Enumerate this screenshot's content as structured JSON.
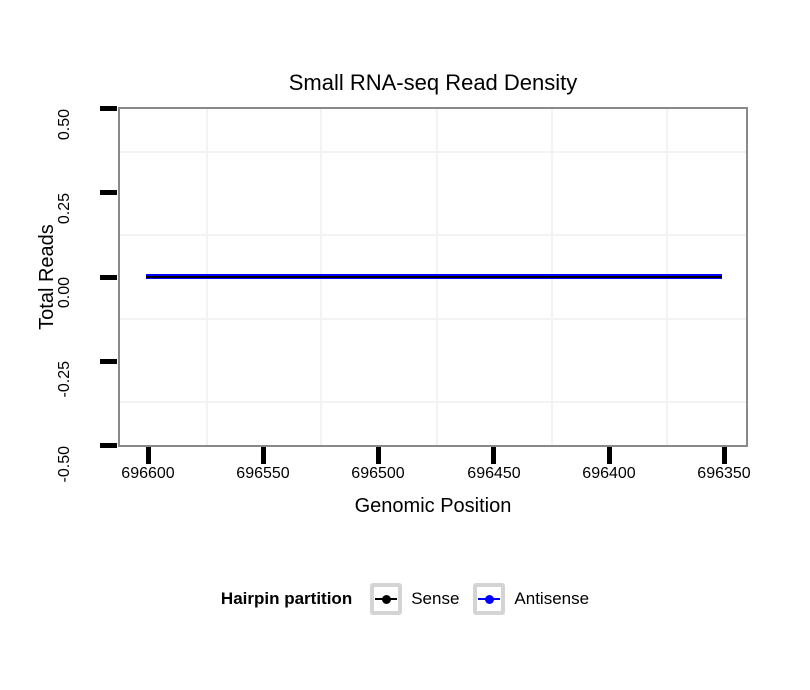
{
  "figure": {
    "title": "Small RNA-seq Read Density",
    "x_axis_title": "Genomic Position",
    "y_axis_title": "Total Reads"
  },
  "axes": {
    "x_tick_labels": [
      "696600",
      "696550",
      "696500",
      "696450",
      "696400",
      "696350"
    ],
    "y_tick_labels": [
      "0.50",
      "0.25",
      "0.00",
      "-0.25",
      "-0.50"
    ]
  },
  "legend": {
    "title": "Hairpin partition",
    "items": [
      {
        "label": "Sense",
        "color": "#000000"
      },
      {
        "label": "Antisense",
        "color": "#0000FF"
      }
    ]
  },
  "colors": {
    "panel_border": "#898989",
    "minor_gridline": "#F3F3F3",
    "tick_marks": "#000000",
    "legend_key_border": "#D4D4D4",
    "background": "#FFFFFF"
  },
  "chart_data": {
    "type": "line",
    "title": "Small RNA-seq Read Density",
    "xlabel": "Genomic Position",
    "ylabel": "Total Reads",
    "x_ticks": [
      696600,
      696550,
      696500,
      696450,
      696400,
      696350
    ],
    "x_axis_reversed": true,
    "xlim": [
      696610,
      696340
    ],
    "y_ticks": [
      0.5,
      0.25,
      0.0,
      -0.25,
      -0.5
    ],
    "ylim": [
      -0.5,
      0.5
    ],
    "grid": "minor gridlines only, very light gray; white panel",
    "legend_position": "bottom",
    "legend_title": "Hairpin partition",
    "series": [
      {
        "name": "Sense",
        "color": "#000000",
        "x": [
          696600,
          696550,
          696500,
          696450,
          696400,
          696352
        ],
        "y": [
          0,
          0,
          0,
          0,
          0,
          0
        ]
      },
      {
        "name": "Antisense",
        "color": "#0000FF",
        "x": [
          696600,
          696550,
          696500,
          696450,
          696400,
          696352
        ],
        "y": [
          0,
          0,
          0,
          0,
          0,
          0
        ]
      }
    ]
  }
}
